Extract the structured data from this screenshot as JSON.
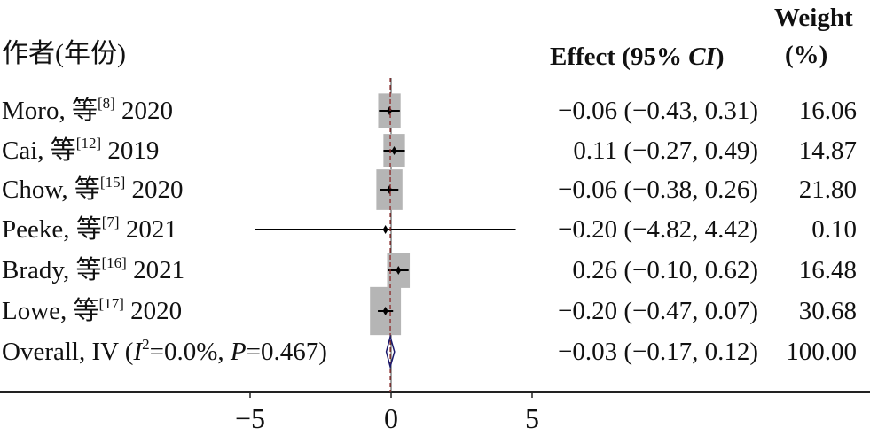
{
  "headers": {
    "author": "作者(年份)",
    "effect": "Effect (95% CI)",
    "effect_pre": "Effect (95% ",
    "effect_ci": "CI",
    "effect_post": ")",
    "weight1": "Weight",
    "weight2": "(%)"
  },
  "colors": {
    "box": "#b5b5b5",
    "diamond": "#1a1a6e",
    "dashed": "#8b2a2a"
  },
  "chart_data": {
    "type": "forest",
    "xlim": [
      -5,
      5
    ],
    "x_ticks": [
      "−5",
      "0",
      "5"
    ],
    "studies": [
      {
        "name": "Moro, 等",
        "ref": "[8]",
        "year": "2020",
        "effect": -0.06,
        "lo": -0.43,
        "hi": 0.31,
        "label": "−0.06 (−0.43, 0.31)",
        "weight": 16.06,
        "weight_label": "16.06"
      },
      {
        "name": "Cai, 等",
        "ref": "[12]",
        "year": "2019",
        "effect": 0.11,
        "lo": -0.27,
        "hi": 0.49,
        "label": "0.11 (−0.27, 0.49)",
        "weight": 14.87,
        "weight_label": "14.87"
      },
      {
        "name": "Chow, 等",
        "ref": "[15]",
        "year": "2020",
        "effect": -0.06,
        "lo": -0.38,
        "hi": 0.26,
        "label": "−0.06 (−0.38, 0.26)",
        "weight": 21.8,
        "weight_label": "21.80"
      },
      {
        "name": "Peeke, 等",
        "ref": "[7]",
        "year": "2021",
        "effect": -0.2,
        "lo": -4.82,
        "hi": 4.42,
        "label": "−0.20 (−4.82, 4.42)",
        "weight": 0.1,
        "weight_label": "0.10"
      },
      {
        "name": "Brady, 等",
        "ref": "[16]",
        "year": "2021",
        "effect": 0.26,
        "lo": -0.1,
        "hi": 0.62,
        "label": "0.26 (−0.10, 0.62)",
        "weight": 16.48,
        "weight_label": "16.48"
      },
      {
        "name": "Lowe, 等",
        "ref": "[17]",
        "year": "2020",
        "effect": -0.2,
        "lo": -0.47,
        "hi": 0.07,
        "label": "−0.20 (−0.47, 0.07)",
        "weight": 30.68,
        "weight_label": "30.68"
      }
    ],
    "overall": {
      "name_pre": "Overall, IV (",
      "I": "I",
      "sup": "2",
      "mid": "=0.0%, ",
      "P": "P",
      "post": "=0.467)",
      "effect": -0.03,
      "lo": -0.17,
      "hi": 0.12,
      "label": "−0.03 (−0.17, 0.12)",
      "weight_label": "100.00"
    }
  }
}
